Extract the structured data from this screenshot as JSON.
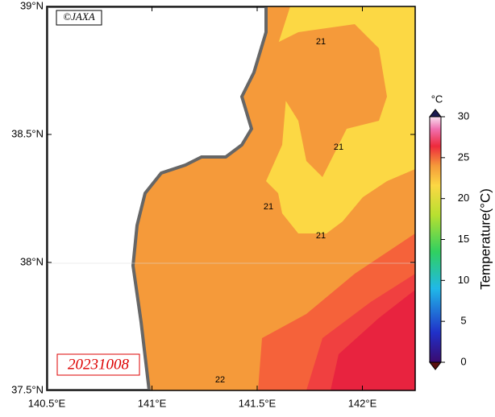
{
  "map": {
    "credit": "©JAXA",
    "date": "20231008",
    "lat_ticks": [
      {
        "value": 39,
        "label": "39°N"
      },
      {
        "value": 38.5,
        "label": "38.5°N"
      },
      {
        "value": 38,
        "label": "38°N"
      },
      {
        "value": 37.5,
        "label": "37.5°N"
      }
    ],
    "lon_ticks": [
      {
        "value": 140.5,
        "label": "140.5°E"
      },
      {
        "value": 141,
        "label": "141°E"
      },
      {
        "value": 141.5,
        "label": "141.5°E"
      },
      {
        "value": 142,
        "label": "142°E"
      }
    ],
    "contour_labels": [
      "21",
      "21",
      "21",
      "21",
      "22"
    ]
  },
  "colorbar": {
    "unit": "°C",
    "label": "Temperature(°C)",
    "range": [
      0,
      30
    ],
    "ticks": [
      0,
      5,
      10,
      15,
      20,
      25,
      30
    ]
  }
}
